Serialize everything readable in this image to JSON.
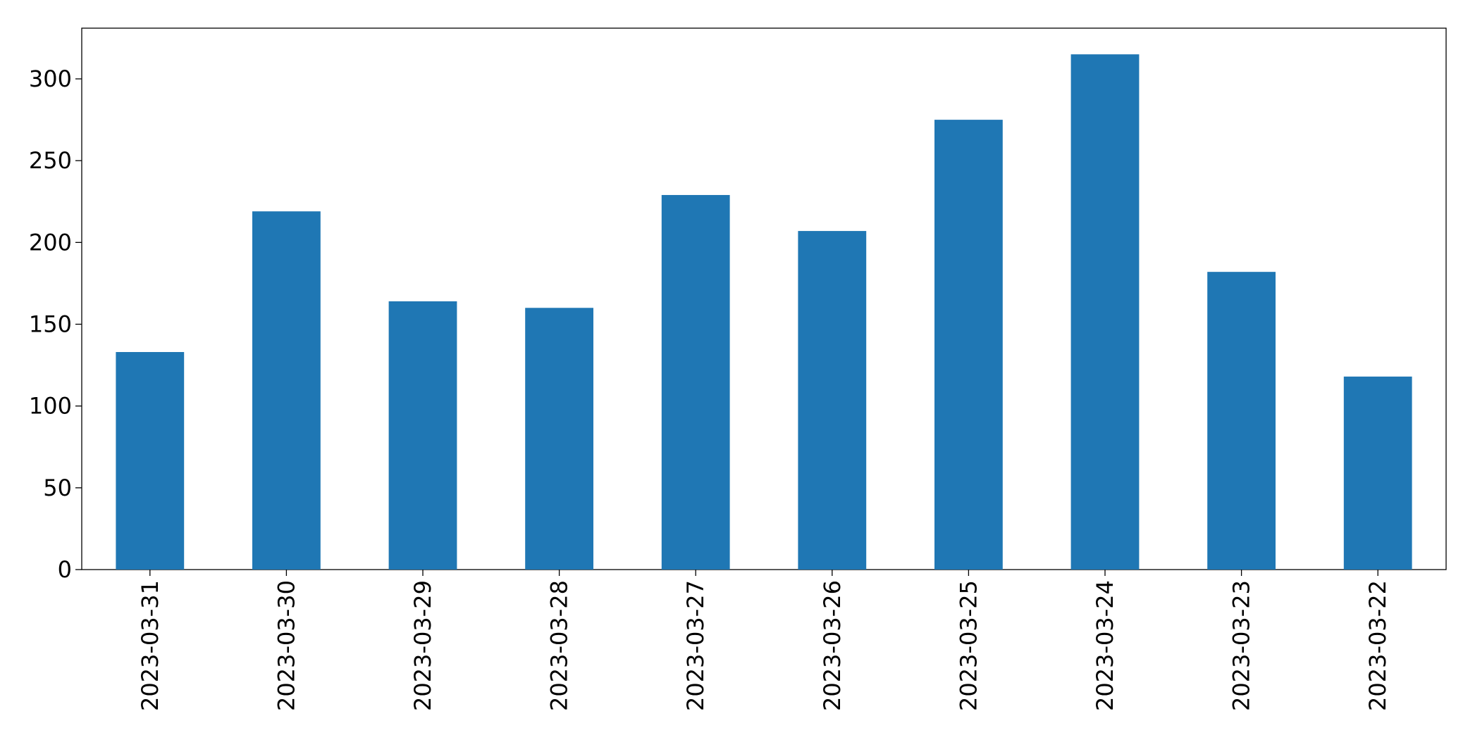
{
  "chart_data": {
    "type": "bar",
    "categories": [
      "2023-03-31",
      "2023-03-30",
      "2023-03-29",
      "2023-03-28",
      "2023-03-27",
      "2023-03-26",
      "2023-03-25",
      "2023-03-24",
      "2023-03-23",
      "2023-03-22"
    ],
    "values": [
      133,
      219,
      164,
      160,
      229,
      207,
      275,
      315,
      182,
      118
    ],
    "color": "#1f77b4",
    "ylim": [
      0,
      331
    ],
    "yticks": [
      0,
      50,
      100,
      150,
      200,
      250,
      300
    ],
    "grid": false
  }
}
